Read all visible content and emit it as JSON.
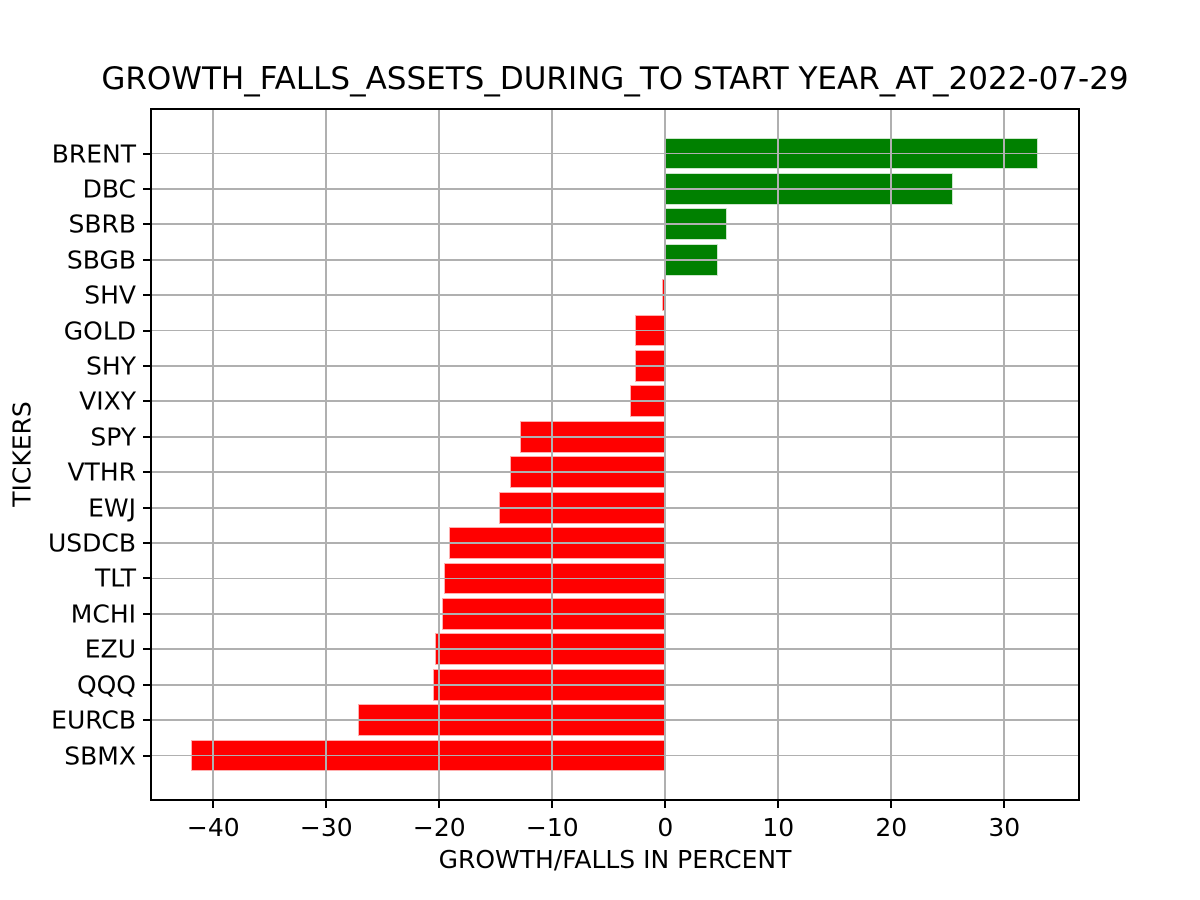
{
  "figure": {
    "background_color": "#ffffff",
    "axis_color": "#000000"
  },
  "chart_data": {
    "type": "bar",
    "orientation": "horizontal",
    "title": "GROWTH_FALLS_ASSETS_DURING_TO START YEAR_AT_2022-07-29",
    "xlabel": "GROWTH/FALLS IN PERCENT",
    "ylabel": "TICKERS",
    "categories": [
      "BRENT",
      "DBC",
      "SBRB",
      "SBGB",
      "SHV",
      "GOLD",
      "SHY",
      "VIXY",
      "SPY",
      "VTHR",
      "EWJ",
      "USDCB",
      "TLT",
      "MCHI",
      "EZU",
      "QQQ",
      "EURCB",
      "SBMX"
    ],
    "values": [
      33.0,
      25.5,
      5.5,
      4.7,
      -0.3,
      -2.7,
      -2.7,
      -3.1,
      -12.9,
      -13.7,
      -14.7,
      -19.1,
      -19.6,
      -19.8,
      -20.4,
      -20.6,
      -27.2,
      -42.0
    ],
    "xticks": [
      -40,
      -30,
      -20,
      -10,
      0,
      10,
      20,
      30
    ],
    "xlim": [
      -45.6,
      36.7
    ],
    "grid": true,
    "grid_color": "#b0b0b0",
    "colors": {
      "positive": "#008000",
      "negative": "#ff0000",
      "positive_edge": "#cde6cd",
      "negative_edge": "#ffafaf"
    },
    "legend_position": "none"
  }
}
